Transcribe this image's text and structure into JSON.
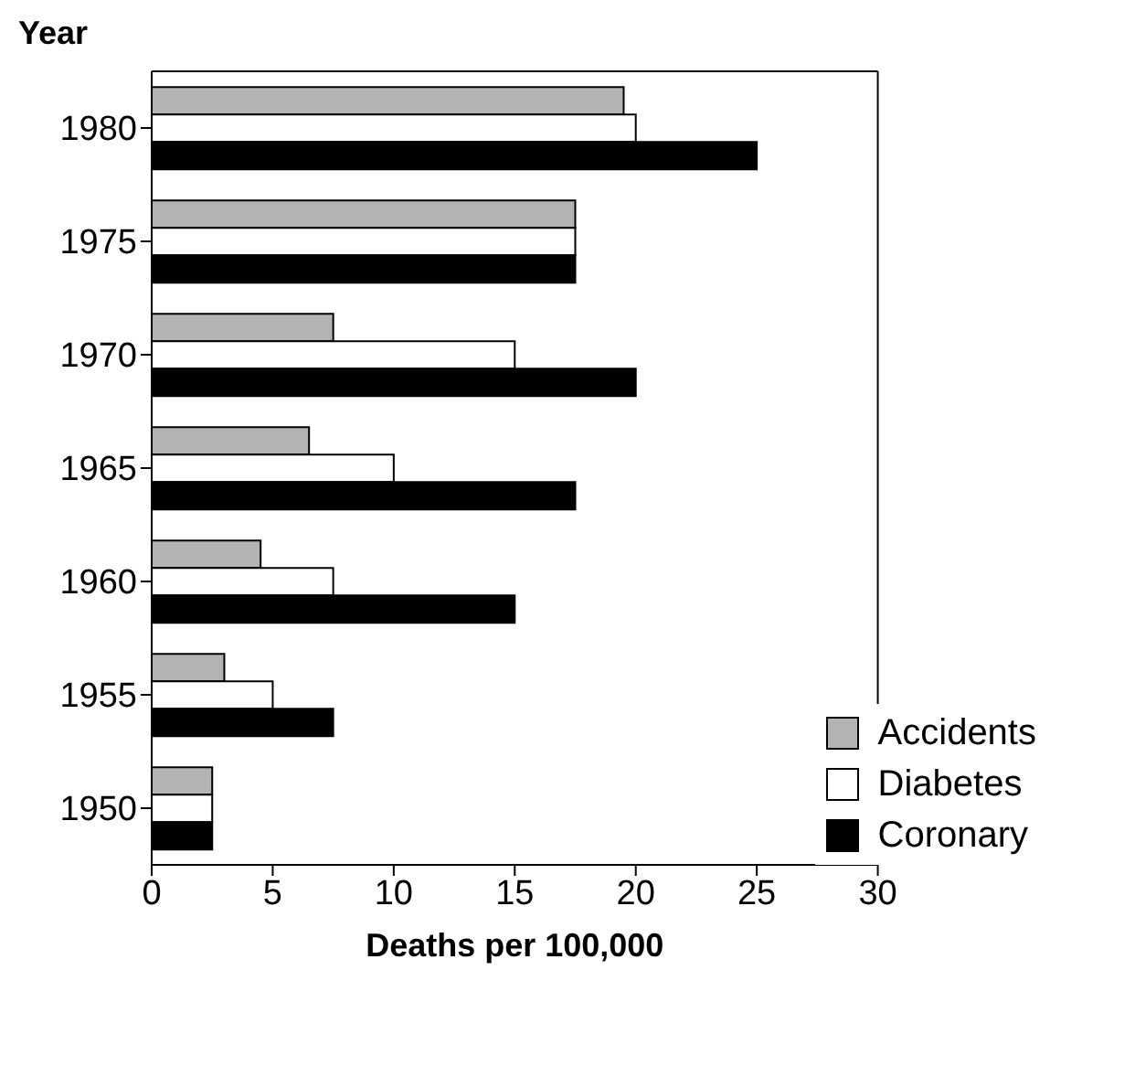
{
  "chart_data": {
    "type": "bar",
    "orientation": "horizontal",
    "xlabel": "Deaths per 100,000",
    "ylabel": "Year",
    "categories": [
      "1980",
      "1975",
      "1970",
      "1965",
      "1960",
      "1955",
      "1950"
    ],
    "series": [
      {
        "name": "Accidents",
        "color": "#b3b3b3",
        "values": [
          19.5,
          17.5,
          7.5,
          6.5,
          4.5,
          3,
          2.5
        ]
      },
      {
        "name": "Diabetes",
        "color": "#ffffff",
        "values": [
          20,
          17.5,
          15,
          10,
          7.5,
          5,
          2.5
        ]
      },
      {
        "name": "Coronary",
        "color": "#000000",
        "values": [
          25,
          17.5,
          20,
          17.5,
          15,
          7.5,
          2.5
        ]
      }
    ],
    "xlim": [
      0,
      30
    ],
    "xticks": [
      0,
      5,
      10,
      15,
      20,
      25,
      30
    ],
    "grid": false,
    "legend": "bottom right"
  }
}
